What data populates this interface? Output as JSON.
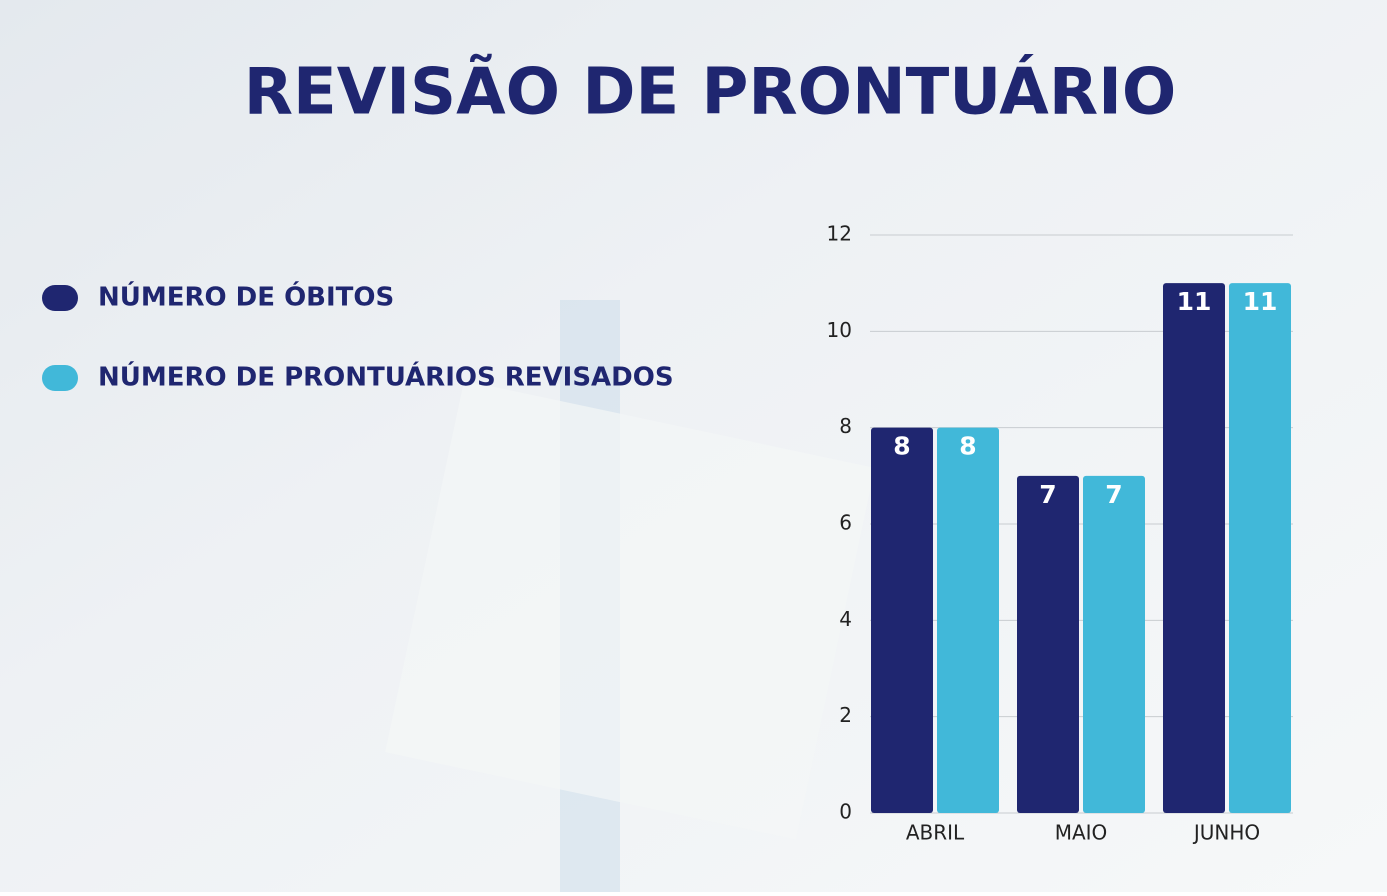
{
  "chart_data": {
    "type": "bar",
    "title": "REVISÃO DE PRONTUÁRIO",
    "categories": [
      "ABRIL",
      "MAIO",
      "JUNHO"
    ],
    "series": [
      {
        "name": "NÚMERO DE ÓBITOS",
        "color": "#1f2670",
        "values": [
          8,
          7,
          11
        ]
      },
      {
        "name": "NÚMERO DE PRONTUÁRIOS REVISADOS",
        "color": "#41b8d9",
        "values": [
          8,
          7,
          11
        ]
      }
    ],
    "ylim": [
      0,
      12
    ],
    "yticks": [
      0,
      2,
      4,
      6,
      8,
      10,
      12
    ],
    "grid": true,
    "legend": "left"
  }
}
